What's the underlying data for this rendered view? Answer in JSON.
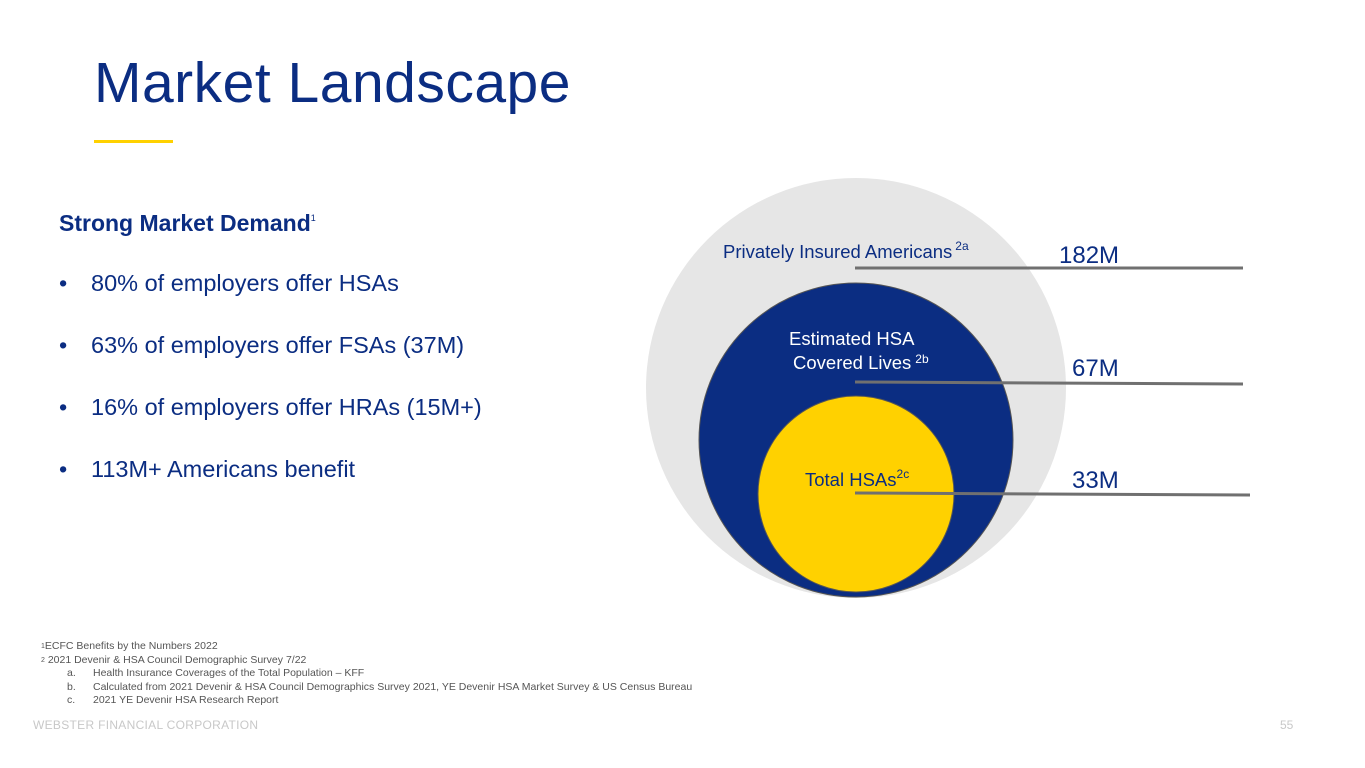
{
  "slide": {
    "title": "Market Landscape",
    "page_number": "55",
    "footer": "WEBSTER FINANCIAL CORPORATION"
  },
  "left": {
    "heading": "Strong Market Demand",
    "heading_sup": "1",
    "bullet_symbol": "•",
    "bullets": [
      "80% of employers offer HSAs",
      "63% of employers offer FSAs (37M)",
      "16% of employers offer HRAs (15M+)",
      "113M+ Americans benefit"
    ]
  },
  "diagram": {
    "outer": {
      "label": "Privately Insured Americans",
      "sup": "2a",
      "value": "182M"
    },
    "middle": {
      "label_line1": "Estimated HSA",
      "label_line2": "Covered Lives",
      "sup": "2b",
      "value": "67M"
    },
    "inner": {
      "label": "Total HSAs",
      "sup": "2c",
      "value": "33M"
    },
    "colors": {
      "outer": "#e6e6e6",
      "middle": "#0b2d82",
      "inner": "#ffd100",
      "leader": "#707070"
    }
  },
  "footnotes": {
    "n1_sup": "1",
    "n1": "ECFC Benefits by the Numbers 2022",
    "n2_sup": "2",
    "n2": " 2021 Devenir & HSA Council Demographic Survey 7/22",
    "subs": [
      {
        "marker": "a.",
        "text": "Health Insurance Coverages of the Total Population – KFF"
      },
      {
        "marker": "b.",
        "text": "Calculated from 2021 Devenir & HSA Council Demographics Survey 2021, YE Devenir HSA Market Survey & US Census Bureau"
      },
      {
        "marker": "c.",
        "text": "2021 YE Devenir HSA Research Report"
      }
    ]
  }
}
